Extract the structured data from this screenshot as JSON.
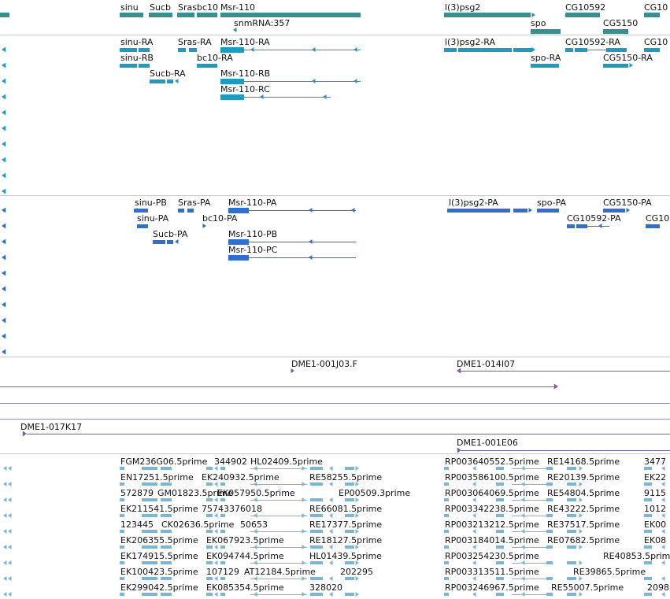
{
  "palette": {
    "gene": "#3b8e8e",
    "transcript_a": "#1d9cc0",
    "transcript_b": "#2f6fd0",
    "clone": "#7b5ab0",
    "est": "#7ab6dc",
    "label": "#111111"
  },
  "tracks": {
    "gene": {
      "labels": [
        "sinu",
        "Sucb",
        "Sras",
        "bc10",
        "Msr-110",
        "snmRNA:357",
        "l(3)psg2",
        "CG10592",
        "CG10",
        "spo",
        "CG5150"
      ]
    },
    "transcripts_a": {
      "labels": [
        "sinu-RA",
        "Sras-RA",
        "Msr-110-RA",
        "l(3)psg2-RA",
        "CG10592-RA",
        "CG10",
        "sinu-RB",
        "bc10-RA",
        "spo-RA",
        "CG5150-RA",
        "Sucb-RA",
        "Msr-110-RB",
        "Msr-110-RC"
      ]
    },
    "transcripts_b": {
      "labels": [
        "sinu-PB",
        "Sras-PA",
        "Msr-110-PA",
        "l(3)psg2-PA",
        "spo-PA",
        "CG5150-PA",
        "sinu-PA",
        "bc10-PA",
        "CG10592-PA",
        "CG10",
        "Sucb-PA",
        "Msr-110-PB",
        "Msr-110-PC"
      ]
    },
    "clones": {
      "labels": [
        "DME1-001J03.F",
        "DME1-014I07",
        "DME1-017K17",
        "DME1-001E06"
      ]
    },
    "ests": {
      "labels": [
        "FGM236G06.5prime",
        "344902",
        "HL02409.5prime",
        "RP003640552.5prime",
        "RE14168.5prime",
        "3477",
        "EN17251.5prime",
        "EK240932.5prime",
        "RE58255.5prime",
        "RP003586100.5prime",
        "RE20139.5prime",
        "EK22",
        "572879",
        "GM01823.5prime",
        "EK057950.5prime",
        "EP00509.3prime",
        "RP003064069.5prime",
        "RE54804.5prime",
        "9115",
        "EK211541.5prime",
        "75743376018",
        "RE66081.5prime",
        "RP003342238.5prime",
        "RE43222.5prime",
        "1012",
        "123445",
        "CK02636.5prime",
        "50653",
        "RE17377.5prime",
        "RP003213212.5prime",
        "RE37517.5prime",
        "EK00",
        "EK206355.5prime",
        "EK067923.5prime",
        "RE18127.5prime",
        "RP003184014.5prime",
        "RE07682.5prime",
        "EK08",
        "EK174915.5prime",
        "EK094744.5prime",
        "HL01439.5prime",
        "RP003254230.5prime",
        "RE40853.5prime",
        "EK100423.5prime",
        "107129",
        "AT12184.5prime",
        "202295",
        "RP003313511.5prime",
        "RE39865.5prime",
        "EK299042.5prime",
        "EK085354.5prime",
        "328020",
        "RP003246967.5prime",
        "RE55007.5prime",
        "2098"
      ]
    }
  }
}
